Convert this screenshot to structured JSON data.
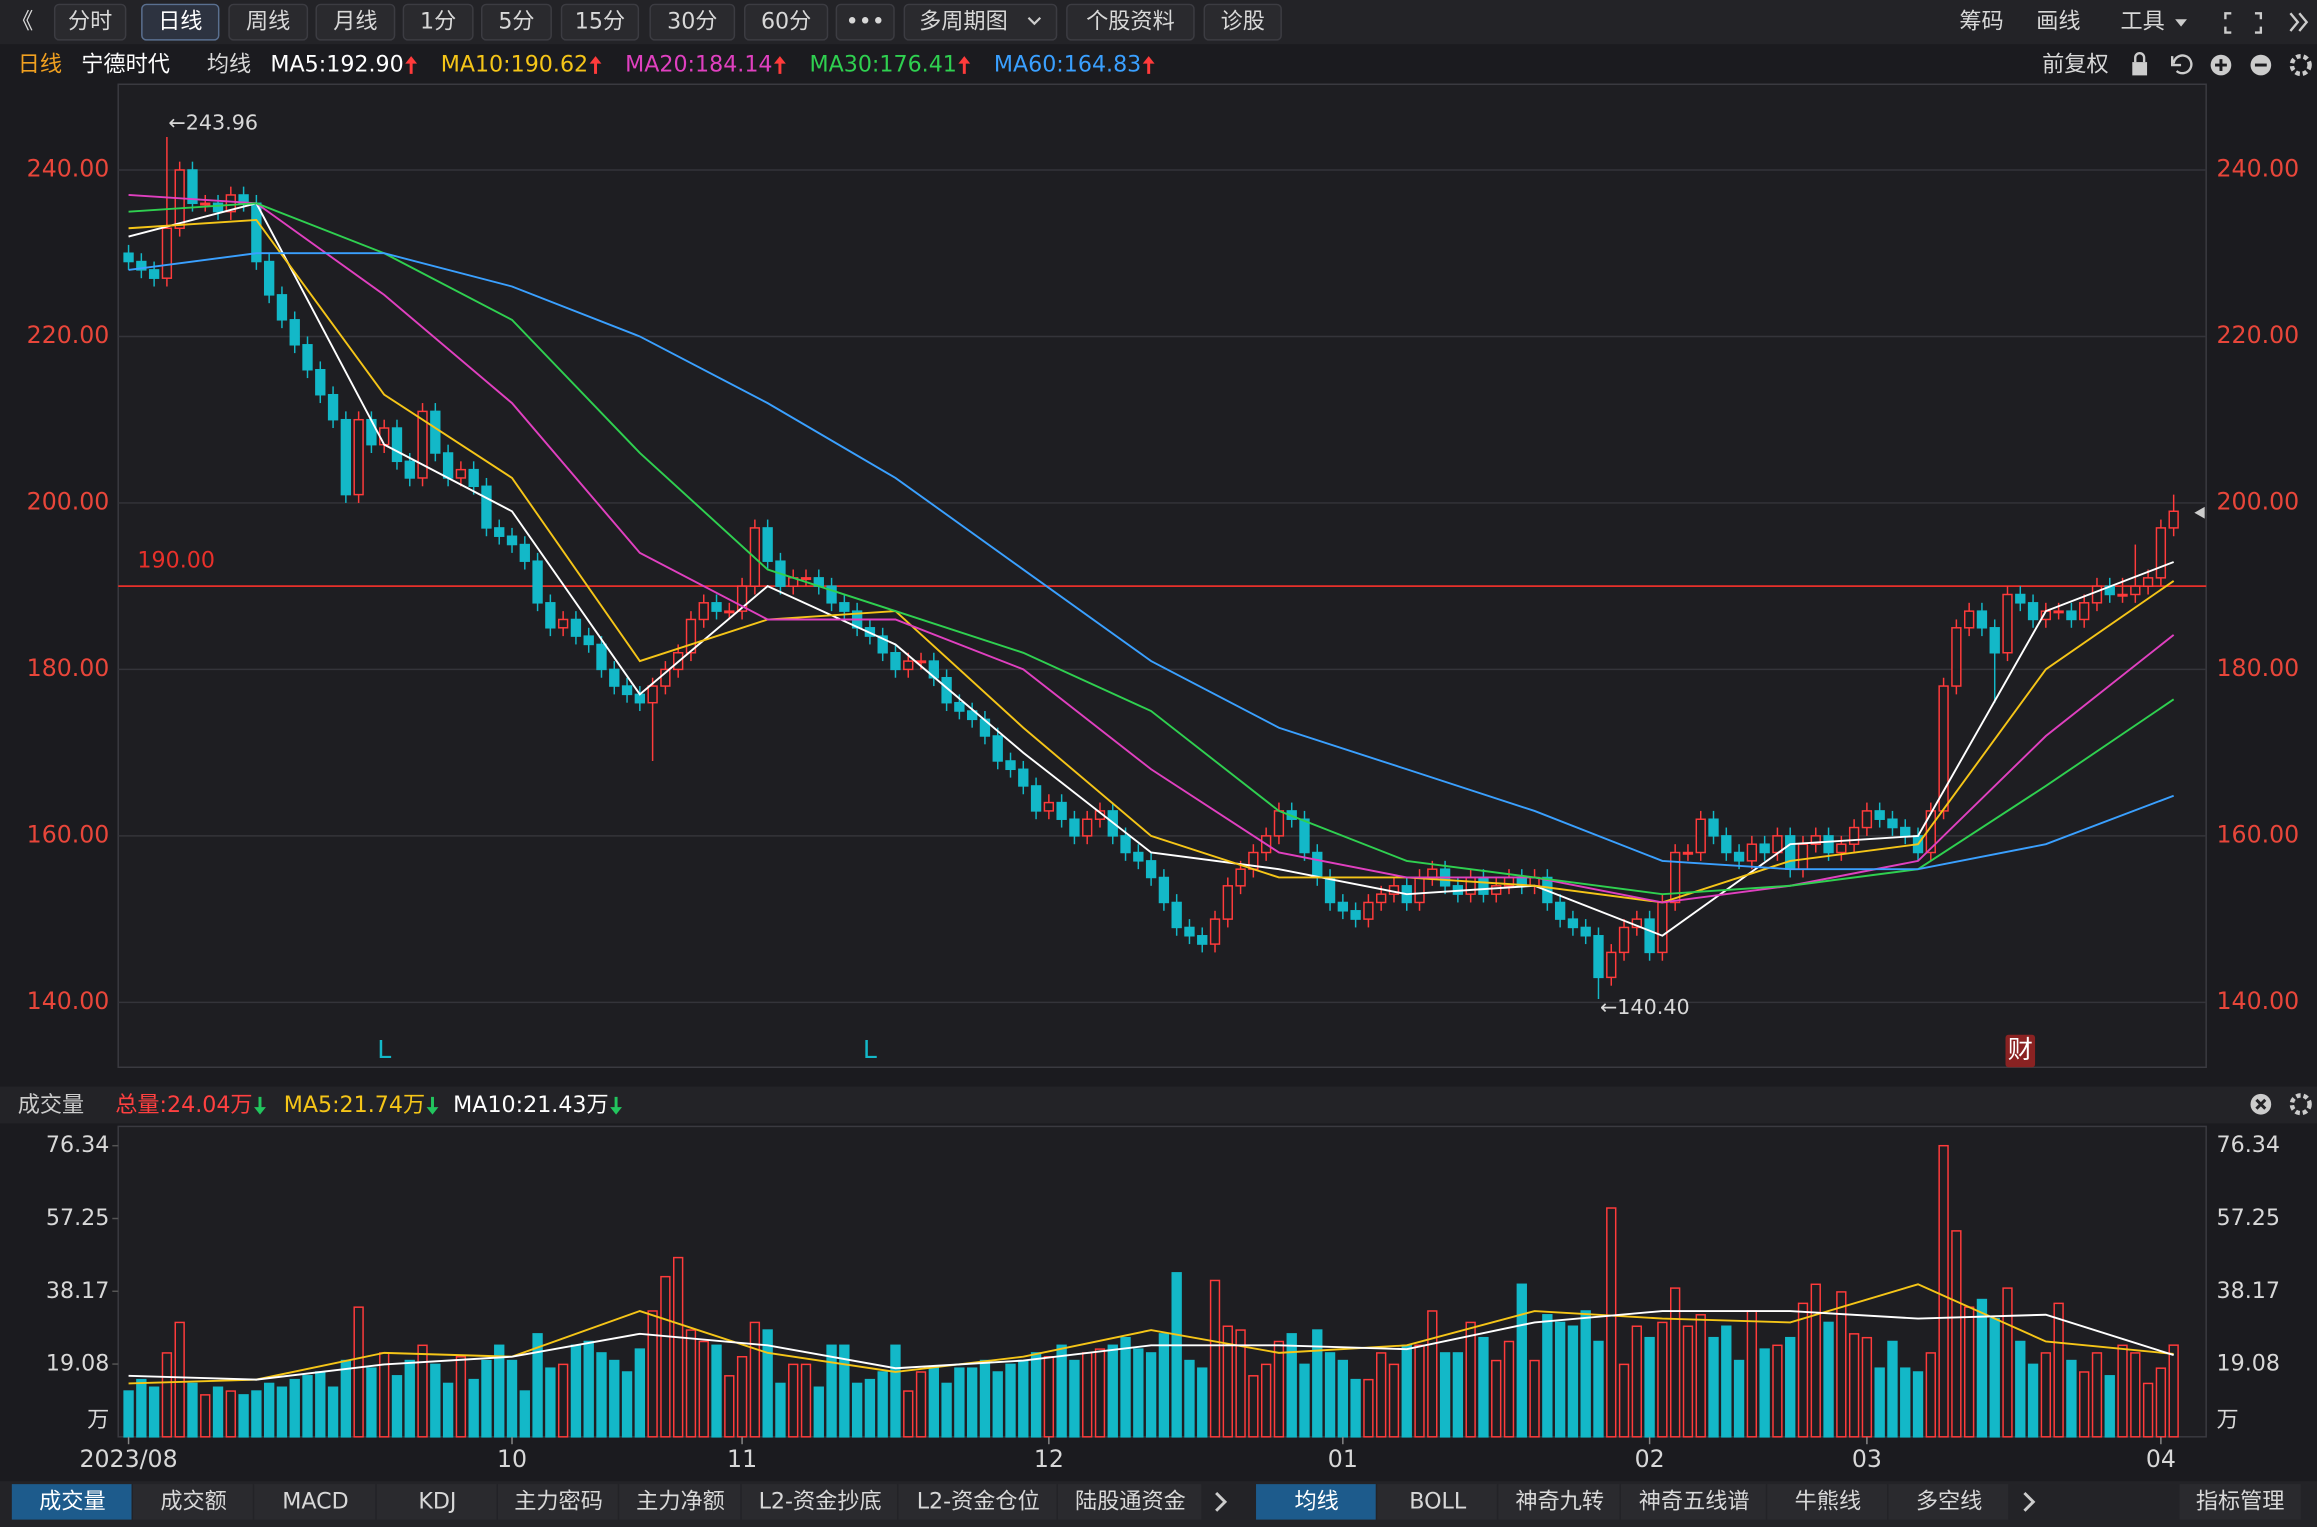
{
  "toolbar": {
    "left": [
      "《",
      "分时",
      "日线",
      "周线",
      "月线",
      "1分",
      "5分",
      "15分",
      "30分",
      "60分",
      "•••",
      "多周期图",
      "个股资料",
      "诊股"
    ],
    "active": 2,
    "right": [
      "筹码",
      "画线",
      "工具"
    ]
  },
  "chart_data": [
    {
      "type": "candlestick",
      "period": "日线",
      "title": "宁德时代",
      "ma_title": "均线",
      "adjust": "前复权",
      "up_color": "#ff3b3b",
      "down_color": "#13b8c8",
      "open": [
        230,
        229,
        228,
        227,
        233,
        240,
        236,
        236,
        235,
        237,
        236,
        229,
        225,
        222,
        219,
        216,
        213,
        210,
        201,
        210,
        207,
        209,
        205,
        203,
        211,
        206,
        203,
        204,
        202,
        197,
        196,
        195,
        193,
        188,
        185,
        186,
        184,
        183,
        180,
        178,
        177,
        176,
        178,
        180,
        182,
        186,
        188,
        187,
        187,
        190,
        197,
        193,
        190,
        191,
        191,
        190,
        188,
        187,
        185,
        184,
        182,
        180,
        181,
        181,
        179,
        176,
        175,
        174,
        172,
        169,
        168,
        166,
        163,
        164,
        162,
        160,
        162,
        163,
        160,
        158,
        157,
        155,
        152,
        149,
        148,
        147,
        150,
        154,
        156,
        158,
        160,
        163,
        162,
        158,
        155,
        152,
        151,
        150,
        152,
        153,
        154,
        152,
        155,
        156,
        154,
        153,
        155,
        153,
        154,
        155,
        154,
        155,
        152,
        150,
        149,
        148,
        143,
        146,
        149,
        150,
        146,
        152,
        158,
        158,
        162,
        160,
        158,
        157,
        159,
        158,
        160,
        156,
        159,
        160,
        158,
        159,
        161,
        163,
        162,
        161,
        160,
        158,
        163,
        178,
        185,
        187,
        185,
        182,
        189,
        188,
        186,
        187,
        187,
        186,
        188,
        190,
        189,
        189,
        190,
        191,
        197
      ],
      "high": [
        231,
        230,
        229,
        243.96,
        241,
        241,
        237,
        237,
        238,
        238,
        237,
        230,
        226,
        223,
        220,
        217,
        214,
        211,
        211,
        211,
        210,
        210,
        206,
        212,
        212,
        207,
        205,
        205,
        203,
        198,
        197,
        196,
        194,
        189,
        187,
        187,
        185,
        184,
        181,
        179,
        178,
        179,
        181,
        183,
        187,
        189,
        189,
        188,
        191,
        198,
        198,
        194,
        192,
        192,
        192,
        191,
        189,
        188,
        186,
        185,
        183,
        182,
        182,
        182,
        180,
        177,
        176,
        175,
        173,
        170,
        169,
        167,
        165,
        165,
        163,
        163,
        164,
        164,
        161,
        159,
        158,
        156,
        153,
        150,
        149,
        151,
        155,
        157,
        159,
        161,
        164,
        164,
        163,
        159,
        156,
        153,
        152,
        153,
        154,
        155,
        155,
        156,
        157,
        157,
        155,
        156,
        156,
        155,
        156,
        156,
        156,
        156,
        153,
        151,
        150,
        149,
        147,
        150,
        151,
        151,
        153,
        159,
        159,
        163,
        163,
        161,
        159,
        160,
        160,
        161,
        161,
        160,
        161,
        161,
        160,
        162,
        164,
        164,
        163,
        162,
        161,
        164,
        179,
        186,
        188,
        188,
        186,
        190,
        190,
        189,
        188,
        188,
        188,
        189,
        191,
        191,
        191,
        195,
        192,
        198,
        201
      ],
      "low": [
        228,
        227,
        226,
        226,
        232,
        235,
        235,
        234,
        234,
        235,
        228,
        224,
        221,
        218,
        215,
        212,
        209,
        200,
        200,
        206,
        206,
        204,
        202,
        202,
        205,
        202,
        202,
        201,
        196,
        195,
        194,
        192,
        187,
        184,
        184,
        183,
        182,
        179,
        177,
        176,
        175,
        169,
        177,
        179,
        181,
        185,
        186,
        186,
        186,
        189,
        192,
        189,
        189,
        190,
        189,
        187,
        186,
        184,
        183,
        181,
        179,
        179,
        180,
        178,
        175,
        174,
        173,
        171,
        168,
        167,
        165,
        162,
        162,
        161,
        159,
        159,
        161,
        159,
        157,
        156,
        154,
        151,
        148,
        147,
        146,
        146,
        149,
        153,
        155,
        157,
        159,
        161,
        157,
        154,
        151,
        150,
        149,
        149,
        151,
        152,
        151,
        151,
        154,
        153,
        152,
        152,
        152,
        152,
        153,
        153,
        153,
        151,
        149,
        148,
        147,
        140.4,
        142,
        145,
        148,
        145,
        145,
        151,
        157,
        157,
        159,
        157,
        156,
        156,
        157,
        157,
        155,
        155,
        158,
        157,
        157,
        158,
        160,
        161,
        160,
        159,
        157,
        157,
        162,
        177,
        184,
        184,
        176,
        181,
        187,
        185,
        185,
        186,
        185,
        185,
        187,
        188,
        188,
        188,
        189,
        190,
        196
      ],
      "close": [
        229,
        228,
        227,
        233,
        240,
        236,
        236,
        235,
        237,
        236,
        229,
        225,
        222,
        219,
        216,
        213,
        210,
        201,
        210,
        207,
        209,
        205,
        203,
        211,
        206,
        203,
        204,
        202,
        197,
        196,
        195,
        193,
        188,
        185,
        186,
        184,
        183,
        180,
        178,
        177,
        176,
        178,
        180,
        182,
        186,
        188,
        187,
        187,
        190,
        197,
        193,
        190,
        191,
        191,
        190,
        188,
        187,
        185,
        184,
        182,
        180,
        181,
        181,
        179,
        176,
        175,
        174,
        172,
        169,
        168,
        166,
        163,
        164,
        162,
        160,
        162,
        163,
        160,
        158,
        157,
        155,
        152,
        149,
        148,
        147,
        150,
        154,
        156,
        158,
        160,
        163,
        162,
        158,
        155,
        152,
        151,
        150,
        152,
        153,
        154,
        152,
        155,
        156,
        154,
        153,
        155,
        153,
        154,
        155,
        154,
        155,
        152,
        150,
        149,
        148,
        143,
        146,
        149,
        150,
        146,
        152,
        158,
        158,
        162,
        160,
        158,
        157,
        159,
        158,
        160,
        156,
        159,
        160,
        158,
        159,
        161,
        163,
        162,
        161,
        160,
        158,
        163,
        178,
        185,
        187,
        185,
        182,
        189,
        188,
        186,
        187,
        187,
        186,
        188,
        190,
        189,
        189,
        190,
        191,
        197,
        199
      ],
      "lines": [
        {
          "name": "MA5:192.90",
          "color": "#ffffff",
          "x": [
            0,
            10,
            20,
            30,
            40,
            50,
            60,
            70,
            80,
            90,
            100,
            110,
            120,
            130,
            140,
            150,
            160
          ],
          "values": [
            232,
            236,
            207,
            199,
            177,
            190,
            183,
            170,
            158,
            156,
            153,
            154,
            148,
            159,
            160,
            187,
            192.9
          ]
        },
        {
          "name": "MA10:190.62",
          "color": "#f5c518",
          "x": [
            0,
            10,
            20,
            30,
            40,
            50,
            60,
            70,
            80,
            90,
            100,
            110,
            120,
            130,
            140,
            150,
            160
          ],
          "values": [
            233,
            234,
            213,
            203,
            181,
            186,
            187,
            173,
            160,
            155,
            155,
            154,
            152,
            157,
            159,
            180,
            190.62
          ]
        },
        {
          "name": "MA20:184.14",
          "color": "#e040c0",
          "x": [
            0,
            10,
            20,
            30,
            40,
            50,
            60,
            70,
            80,
            90,
            100,
            110,
            120,
            130,
            140,
            150,
            160
          ],
          "values": [
            237,
            236,
            225,
            212,
            194,
            186,
            186,
            180,
            168,
            158,
            155,
            155,
            152,
            154,
            157,
            172,
            184.14
          ]
        },
        {
          "name": "MA30:176.41",
          "color": "#2fd050",
          "x": [
            0,
            10,
            20,
            30,
            40,
            50,
            60,
            70,
            80,
            90,
            100,
            110,
            120,
            130,
            140,
            150,
            160
          ],
          "values": [
            235,
            236,
            230,
            222,
            206,
            192,
            187,
            182,
            175,
            163,
            157,
            155,
            153,
            154,
            156,
            166,
            176.41
          ]
        },
        {
          "name": "MA60:164.83",
          "color": "#3aa0ff",
          "x": [
            0,
            10,
            20,
            30,
            40,
            50,
            60,
            70,
            80,
            90,
            100,
            110,
            120,
            130,
            140,
            150,
            160
          ],
          "values": [
            228,
            230,
            230,
            226,
            220,
            212,
            203,
            192,
            181,
            173,
            168,
            163,
            157,
            156,
            156,
            159,
            164.83
          ]
        }
      ],
      "ylim": [
        132.2,
        250.3
      ],
      "yticks": [
        {
          "value": 140,
          "label": "140.00"
        },
        {
          "value": 160,
          "label": "160.00"
        },
        {
          "value": 180,
          "label": "180.00"
        },
        {
          "value": 200,
          "label": "200.00"
        },
        {
          "value": 220,
          "label": "220.00"
        },
        {
          "value": 240,
          "label": "240.00"
        }
      ],
      "grid": true,
      "hline": {
        "value": 190,
        "label": "190.00",
        "color": "#e8302a"
      },
      "annotations": [
        {
          "text": "←243.96",
          "value": 243.96
        },
        {
          "text": "←140.40",
          "value": 140.4
        }
      ],
      "signals": [
        "L",
        "L",
        "财"
      ]
    },
    {
      "type": "bar",
      "title": "成交量",
      "total_label": "总量:24.04万",
      "unit": "万",
      "categories": [
        "2023/08",
        null,
        null,
        null,
        null,
        null,
        null,
        null,
        null,
        null,
        null,
        null,
        null,
        null,
        null,
        null,
        null,
        null,
        null,
        null,
        null,
        null,
        null,
        null,
        null,
        null,
        null,
        null,
        null,
        null,
        "10",
        null,
        null,
        null,
        null,
        null,
        null,
        null,
        null,
        null,
        null,
        null,
        null,
        null,
        null,
        null,
        null,
        null,
        "11",
        null,
        null,
        null,
        null,
        null,
        null,
        null,
        null,
        null,
        null,
        null,
        null,
        null,
        null,
        null,
        null,
        null,
        null,
        null,
        null,
        null,
        null,
        null,
        "12",
        null,
        null,
        null,
        null,
        null,
        null,
        null,
        null,
        null,
        null,
        null,
        null,
        null,
        null,
        null,
        null,
        null,
        null,
        null,
        null,
        null,
        null,
        "01",
        null,
        null,
        null,
        null,
        null,
        null,
        null,
        null,
        null,
        null,
        null,
        null,
        null,
        null,
        null,
        null,
        null,
        null,
        null,
        null,
        null,
        null,
        null,
        "02",
        null,
        null,
        null,
        null,
        null,
        null,
        null,
        null,
        null,
        null,
        null,
        null,
        null,
        null,
        null,
        null,
        "03",
        null,
        null,
        null,
        null,
        null,
        null,
        null,
        null,
        null,
        null,
        null,
        null,
        null,
        null,
        null,
        null,
        null,
        null,
        null,
        null,
        null,
        null,
        "04",
        null
      ],
      "values": [
        12,
        15,
        13,
        22,
        30,
        14,
        11,
        13,
        12,
        11,
        12,
        14,
        13,
        15,
        16,
        17,
        13,
        20,
        34,
        18,
        22,
        16,
        20,
        24,
        19,
        14,
        21,
        15,
        20,
        24,
        20,
        12,
        27,
        18,
        19,
        24,
        25,
        22,
        20,
        17,
        23,
        33,
        42,
        47,
        28,
        25,
        24,
        16,
        21,
        30,
        28,
        14,
        19,
        19,
        13,
        24,
        24,
        14,
        15,
        17,
        24,
        12,
        17,
        18,
        14,
        18,
        18,
        20,
        17,
        19,
        20,
        22,
        21,
        24,
        20,
        22,
        23,
        24,
        26,
        23,
        22,
        27,
        43,
        20,
        18,
        41,
        29,
        28,
        16,
        19,
        25,
        27,
        19,
        28,
        22,
        20,
        15,
        15,
        22,
        19,
        24,
        24,
        33,
        22,
        22,
        30,
        26,
        20,
        25,
        40,
        20,
        32,
        30,
        29,
        33,
        25,
        60,
        19,
        29,
        26,
        30,
        39,
        29,
        32,
        26,
        29,
        20,
        33,
        23,
        24,
        26,
        35,
        40,
        30,
        38,
        27,
        26,
        18,
        25,
        18,
        17,
        22,
        76.34,
        54,
        34,
        36,
        31,
        39,
        25,
        19,
        22,
        35,
        20,
        17,
        22,
        16,
        24,
        22,
        14,
        18,
        24.04
      ],
      "lines": [
        {
          "name": "MA5:21.74万",
          "color": "#f5c518",
          "x": [
            0,
            10,
            20,
            30,
            40,
            50,
            60,
            70,
            80,
            90,
            100,
            110,
            120,
            130,
            140,
            150,
            160
          ],
          "values": [
            14,
            15,
            22,
            21,
            33,
            22,
            17,
            21,
            28,
            22,
            24,
            33,
            31,
            30,
            40,
            25,
            21.74
          ]
        },
        {
          "name": "MA10:21.43万",
          "color": "#ffffff",
          "x": [
            0,
            10,
            20,
            30,
            40,
            50,
            60,
            70,
            80,
            90,
            100,
            110,
            120,
            130,
            140,
            150,
            160
          ],
          "values": [
            16,
            15,
            19,
            21,
            27,
            24,
            18,
            20,
            24,
            24,
            23,
            30,
            33,
            33,
            31,
            32,
            21.43
          ]
        }
      ],
      "ylim": [
        0,
        81.4
      ],
      "yticks": [
        19.08,
        38.17,
        57.25,
        76.34
      ]
    }
  ],
  "indicator_tabs": {
    "left": [
      "成交量",
      "成交额",
      "MACD",
      "KDJ",
      "主力密码",
      "主力净额",
      "L2-资金抄底",
      "L2-资金仓位",
      "陆股通资金"
    ],
    "active_left": 0,
    "right": [
      "均线",
      "BOLL",
      "神奇九转",
      "神奇五线谱",
      "牛熊线",
      "多空线"
    ],
    "active_right": 0,
    "manage": "指标管理"
  }
}
